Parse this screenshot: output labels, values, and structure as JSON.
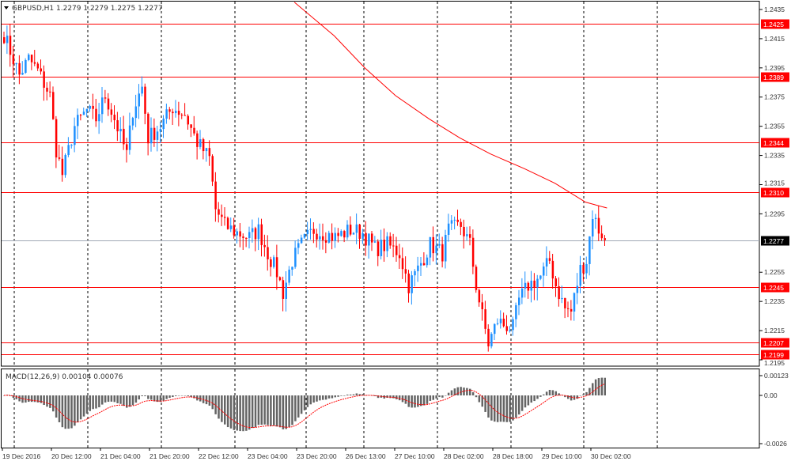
{
  "header": {
    "symbol": "GBPUSD,H1",
    "ohlc": "1.2279 1.2279 1.2275 1.2277"
  },
  "macd_header": "MACD(12,26,9) 0.00104 0.00076",
  "colors": {
    "bull": "#1e90ff",
    "bear": "#ff0000",
    "level": "#ff0000",
    "current": "#a0a8b4",
    "ma": "#ff0000",
    "macd_hist": "#646464",
    "macd_signal": "#ff0000"
  },
  "chart_data": {
    "type": "candlestick",
    "price_axis_ticks": [
      "1.2435",
      "1.2415",
      "1.2395",
      "1.2375",
      "1.2355",
      "1.2335",
      "1.2315",
      "1.2295",
      "1.2255",
      "1.2235",
      "1.2215",
      "1.2195"
    ],
    "ylim": [
      1.2188,
      1.2441
    ],
    "levels": [
      "1.2425",
      "1.2389",
      "1.2344",
      "1.2310",
      "1.2245",
      "1.2207",
      "1.2199"
    ],
    "current_price": "1.2277",
    "time_labels": [
      "19 Dec 2016",
      "20 Dec 12:00",
      "21 Dec 04:00",
      "21 Dec 20:00",
      "22 Dec 12:00",
      "23 Dec 04:00",
      "23 Dec 20:00",
      "26 Dec 13:00",
      "27 Dec 10:00",
      "28 Dec 02:00",
      "28 Dec 18:00",
      "29 Dec 10:00",
      "30 Dec 02:00"
    ],
    "bar_count": 197,
    "close_path": [
      [
        0,
        1.2418
      ],
      [
        1,
        1.2412
      ],
      [
        5,
        1.239
      ],
      [
        8,
        1.2401
      ],
      [
        11,
        1.2393
      ],
      [
        15,
        1.2376
      ],
      [
        17,
        1.2339
      ],
      [
        19,
        1.2322
      ],
      [
        23,
        1.2355
      ],
      [
        27,
        1.2366
      ],
      [
        30,
        1.236
      ],
      [
        33,
        1.2376
      ],
      [
        36,
        1.236
      ],
      [
        40,
        1.2336
      ],
      [
        42,
        1.2366
      ],
      [
        45,
        1.2382
      ],
      [
        47,
        1.2347
      ],
      [
        51,
        1.2355
      ],
      [
        55,
        1.2368
      ],
      [
        59,
        1.2363
      ],
      [
        63,
        1.2344
      ],
      [
        67,
        1.2333
      ],
      [
        69,
        1.2298
      ],
      [
        72,
        1.2287
      ],
      [
        76,
        1.2282
      ],
      [
        80,
        1.2279
      ],
      [
        83,
        1.2284
      ],
      [
        86,
        1.2268
      ],
      [
        89,
        1.2255
      ],
      [
        91,
        1.2241
      ],
      [
        94,
        1.2263
      ],
      [
        97,
        1.2274
      ],
      [
        101,
        1.2284
      ],
      [
        104,
        1.2282
      ],
      [
        108,
        1.2279
      ],
      [
        113,
        1.2284
      ],
      [
        117,
        1.2282
      ],
      [
        121,
        1.2271
      ],
      [
        125,
        1.2274
      ],
      [
        129,
        1.2268
      ],
      [
        132,
        1.2246
      ],
      [
        135,
        1.2257
      ],
      [
        139,
        1.2274
      ],
      [
        143,
        1.2268
      ],
      [
        145,
        1.2284
      ],
      [
        149,
        1.2287
      ],
      [
        152,
        1.2274
      ],
      [
        154,
        1.2246
      ],
      [
        156,
        1.2225
      ],
      [
        158,
        1.2206
      ],
      [
        161,
        1.2222
      ],
      [
        163,
        1.2219
      ],
      [
        166,
        1.2217
      ],
      [
        168,
        1.2236
      ],
      [
        171,
        1.2246
      ],
      [
        175,
        1.2252
      ],
      [
        178,
        1.2263
      ],
      [
        180,
        1.2246
      ],
      [
        183,
        1.223
      ],
      [
        185,
        1.2228
      ],
      [
        188,
        1.2257
      ],
      [
        190,
        1.2263
      ],
      [
        192,
        1.2295
      ],
      [
        194,
        1.2284
      ],
      [
        196,
        1.2279
      ],
      [
        197,
        1.2277
      ]
    ],
    "moving_average": [
      [
        95,
        1.244
      ],
      [
        108,
        1.2417
      ],
      [
        118,
        1.2395
      ],
      [
        128,
        1.2376
      ],
      [
        139,
        1.236
      ],
      [
        149,
        1.2347
      ],
      [
        159,
        1.2336
      ],
      [
        170,
        1.2326
      ],
      [
        180,
        1.2316
      ],
      [
        190,
        1.2303
      ],
      [
        197,
        1.2299
      ]
    ],
    "macd": {
      "params": "12,26,9",
      "value": 0.00104,
      "signal": 0.00076,
      "axis_ticks": [
        "0.00123",
        "0.00",
        "-0.0026"
      ],
      "ylim": [
        -0.0027,
        0.0014
      ]
    }
  }
}
